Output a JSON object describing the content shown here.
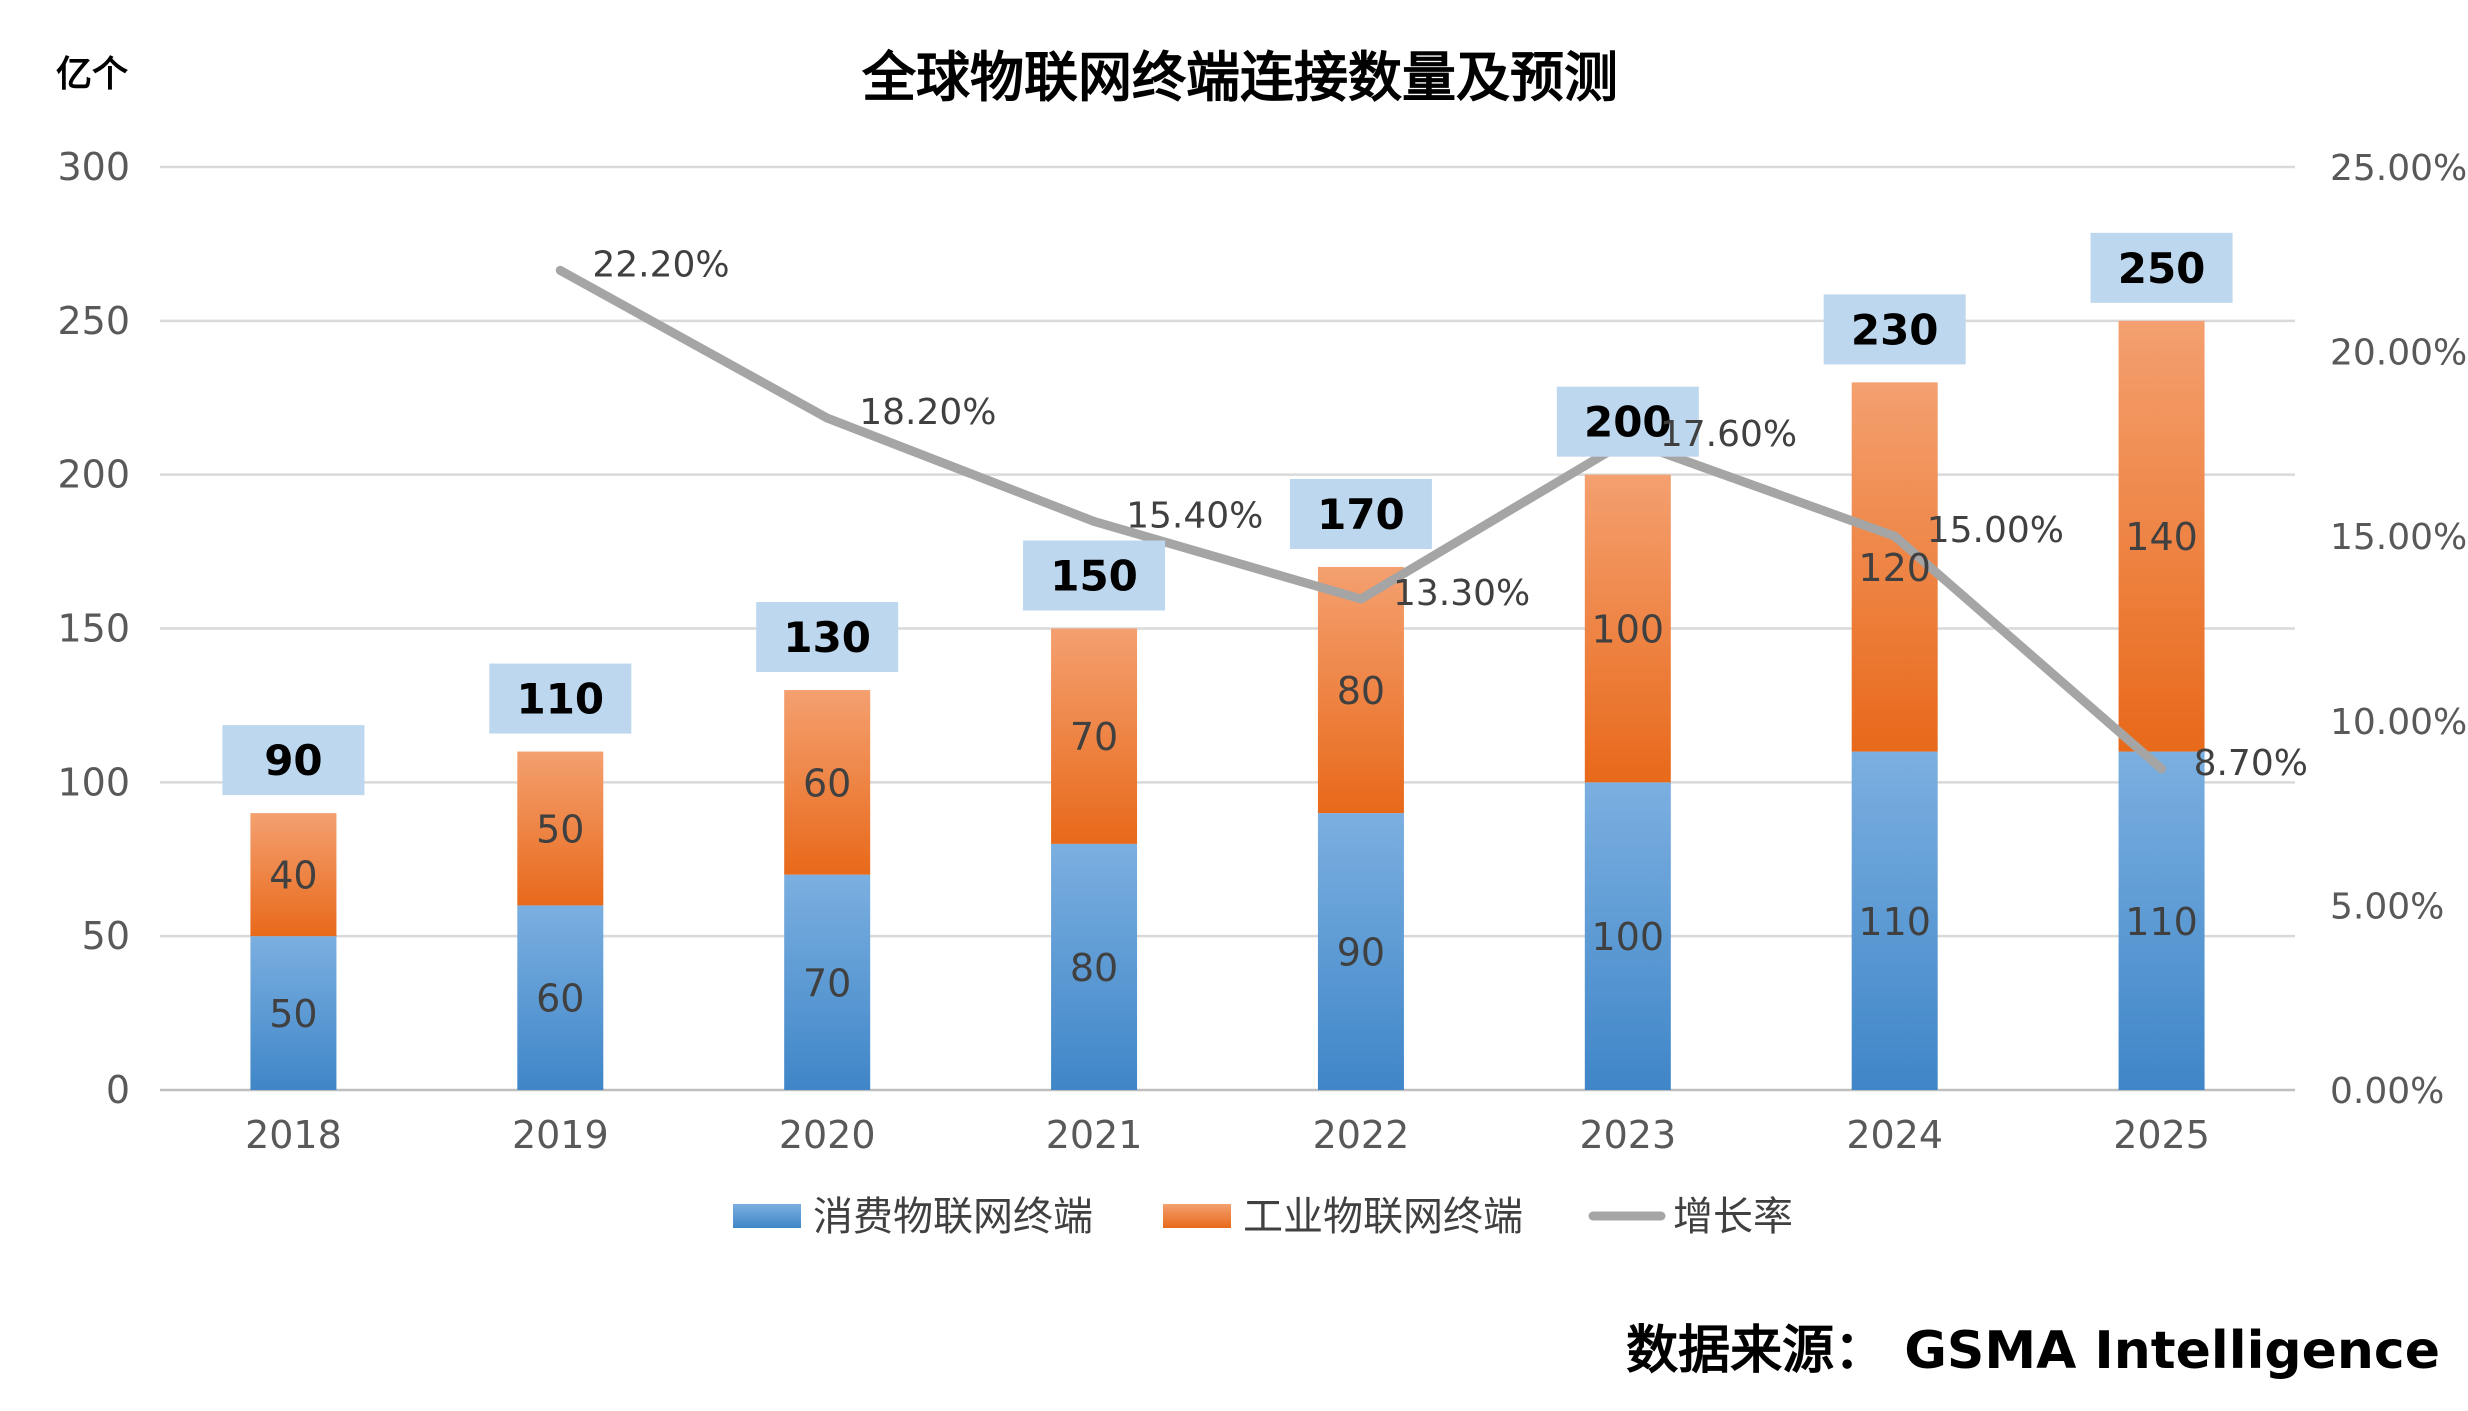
{
  "chart_data": {
    "type": "bar",
    "stacked": true,
    "title": "全球物联网终端连接数量及预测",
    "unit_left": "亿个",
    "source": "数据来源： GSMA Intelligence",
    "categories": [
      "2018",
      "2019",
      "2020",
      "2021",
      "2022",
      "2023",
      "2024",
      "2025"
    ],
    "series": [
      {
        "name": "消费物联网终端",
        "type": "bar",
        "axis": "left",
        "color": "#5B9BD5",
        "values": [
          50,
          60,
          70,
          80,
          90,
          100,
          110,
          110
        ],
        "labels": [
          "50",
          "60",
          "70",
          "80",
          "90",
          "100",
          "110",
          "110"
        ]
      },
      {
        "name": "工业物联网终端",
        "type": "bar",
        "axis": "left",
        "color": "#ED7D31",
        "values": [
          40,
          50,
          60,
          70,
          80,
          100,
          120,
          140
        ],
        "labels": [
          "40",
          "50",
          "60",
          "70",
          "80",
          "100",
          "120",
          "140"
        ]
      },
      {
        "name": "增长率",
        "type": "line",
        "axis": "right",
        "color": "#A5A5A5",
        "values": [
          null,
          22.2,
          18.2,
          15.4,
          13.3,
          17.6,
          15.0,
          8.7
        ],
        "labels": [
          "",
          "22.20%",
          "18.20%",
          "15.40%",
          "13.30%",
          "17.60%",
          "15.00%",
          "8.70%"
        ]
      }
    ],
    "totals": [
      "90",
      "110",
      "130",
      "150",
      "170",
      "200",
      "230",
      "250"
    ],
    "ylim_left": [
      0,
      300
    ],
    "yticks_left": [
      "0",
      "50",
      "100",
      "150",
      "200",
      "250",
      "300"
    ],
    "ylim_right": [
      0,
      25
    ],
    "yticks_right": [
      "0.00%",
      "5.00%",
      "10.00%",
      "15.00%",
      "20.00%",
      "25.00%"
    ],
    "grid": true,
    "legend_position": "bottom",
    "total_label_bg": "#BDD7EE",
    "grid_color": "#D9D9D9"
  }
}
